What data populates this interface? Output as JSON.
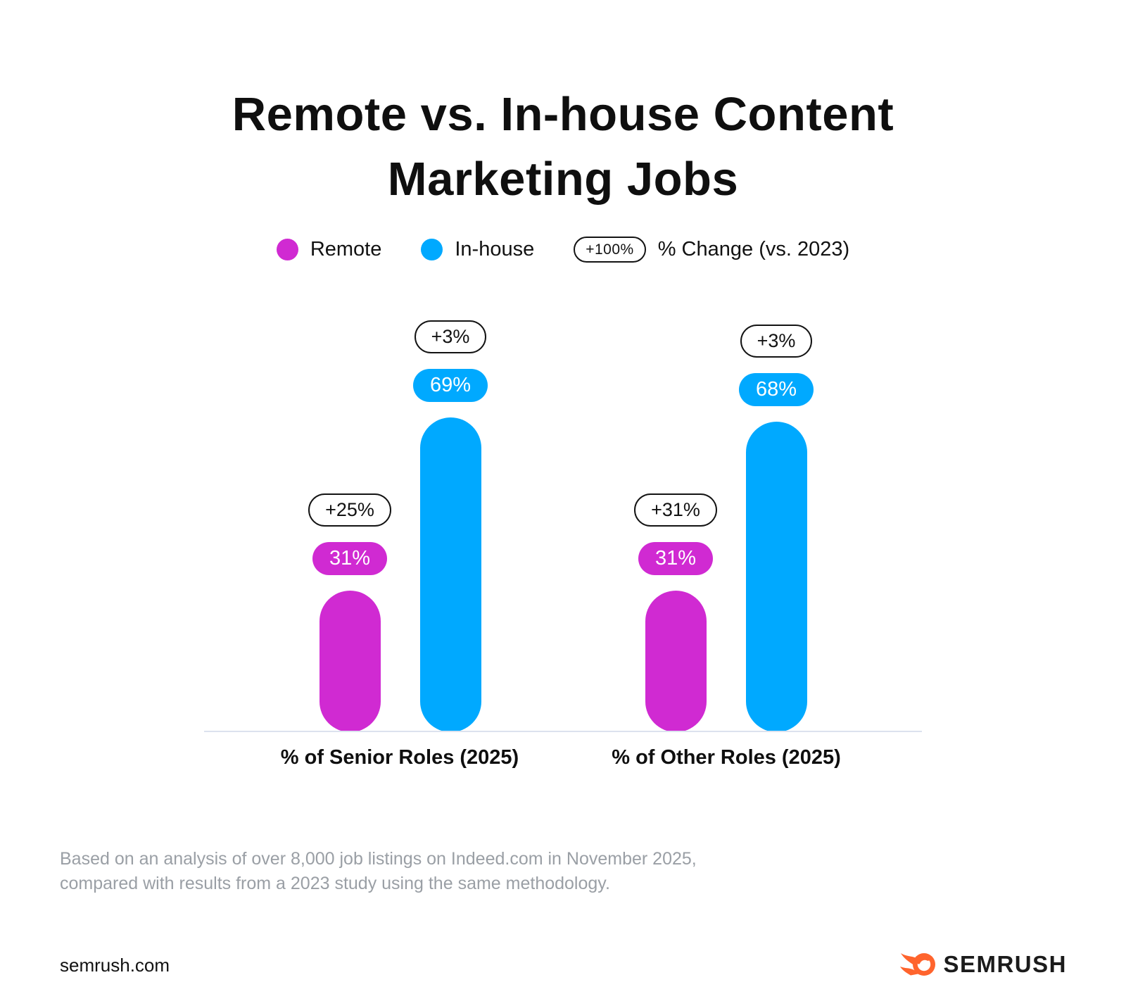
{
  "title": {
    "line1": "Remote vs. In-house Content",
    "line2": "Marketing Jobs"
  },
  "legend": {
    "remote_label": "Remote",
    "inhouse_label": "In-house",
    "change_pill": "+100%",
    "change_label": "% Change (vs. 2023)"
  },
  "chart_data": {
    "type": "bar",
    "title": "Remote vs. In-house Content Marketing Jobs",
    "categories": [
      "% of Senior Roles (2025)",
      "% of Other Roles (2025)"
    ],
    "series": [
      {
        "name": "Remote",
        "color": "#D02AD2",
        "values": [
          31,
          31
        ],
        "labels": [
          "31%",
          "31%"
        ],
        "changes": [
          "+25%",
          "+31%"
        ]
      },
      {
        "name": "In-house",
        "color": "#00A9FF",
        "values": [
          69,
          68
        ],
        "labels": [
          "69%",
          "68%"
        ],
        "changes": [
          "+3%",
          "+3%"
        ]
      }
    ],
    "ylim": [
      0,
      100
    ],
    "value_unit": "%",
    "legend_position": "top",
    "grid": false,
    "annotation_meaning": "% Change (vs. 2023)"
  },
  "footnote": {
    "line1": "Based on an analysis of over 8,000 job listings on Indeed.com in November 2025,",
    "line2": "compared with results from a 2023 study using the same methodology."
  },
  "footer": {
    "site": "semrush.com",
    "brand": "SEMRUSH"
  },
  "colors": {
    "remote": "#D02AD2",
    "inhouse": "#00A9FF",
    "logo_orange": "#FF642D",
    "baseline": "#DCE2EE",
    "footnote_gray": "#9A9FA5",
    "text": "#121212"
  }
}
